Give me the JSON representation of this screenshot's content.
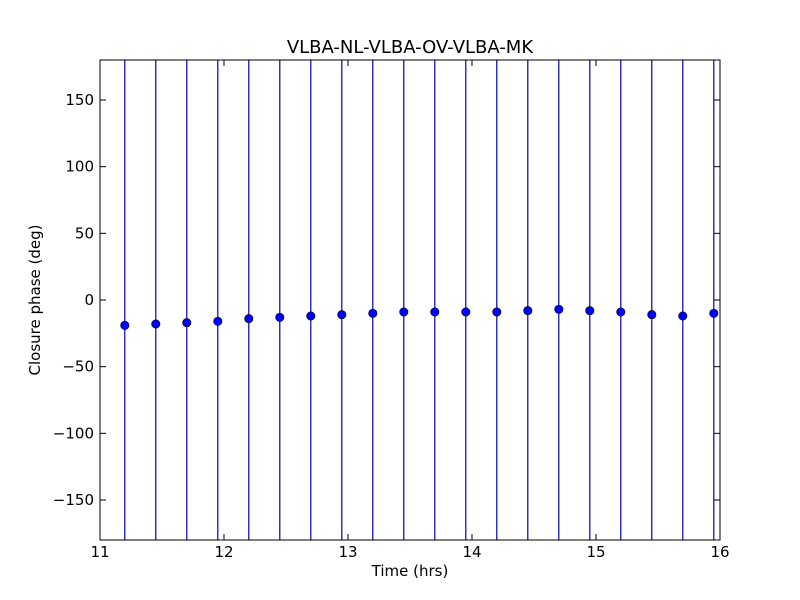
{
  "chart_data": {
    "type": "scatter",
    "title": "VLBA-NL-VLBA-OV-VLBA-MK",
    "xlabel": "Time (hrs)",
    "ylabel": "Closure phase (deg)",
    "xlim": [
      11,
      16
    ],
    "ylim": [
      -180,
      180
    ],
    "xticks": [
      11,
      12,
      13,
      14,
      15,
      16
    ],
    "xtick_labels": [
      "11",
      "12",
      "13",
      "14",
      "15",
      "16"
    ],
    "yticks": [
      150,
      100,
      50,
      0,
      -50,
      -100,
      -150
    ],
    "ytick_labels": [
      "150",
      "100",
      "50",
      "0",
      "−50",
      "−100",
      "−150"
    ],
    "grid": false,
    "marker_color": "#0000ff",
    "errorbar_color": "#0000aa",
    "series": [
      {
        "x": [
          11.2,
          11.45,
          11.7,
          11.95,
          12.2,
          12.45,
          12.7,
          12.95,
          13.2,
          13.45,
          13.7,
          13.95,
          14.2,
          14.45,
          14.7,
          14.95,
          15.2,
          15.45,
          15.7,
          15.95
        ],
        "y": [
          -19,
          -18,
          -17,
          -16,
          -14,
          -13,
          -12,
          -11,
          -10,
          -9,
          -9,
          -9,
          -9,
          -8,
          -7,
          -8,
          -9,
          -11,
          -12,
          -10
        ],
        "yerr_low": [
          -180,
          -180,
          -180,
          -180,
          -180,
          -180,
          -180,
          -180,
          -180,
          -180,
          -180,
          -180,
          -180,
          -180,
          -180,
          -180,
          -180,
          -180,
          -180,
          -180
        ],
        "yerr_high": [
          180,
          180,
          180,
          180,
          180,
          180,
          180,
          180,
          180,
          180,
          180,
          180,
          180,
          180,
          180,
          180,
          180,
          180,
          180,
          180
        ]
      }
    ]
  }
}
